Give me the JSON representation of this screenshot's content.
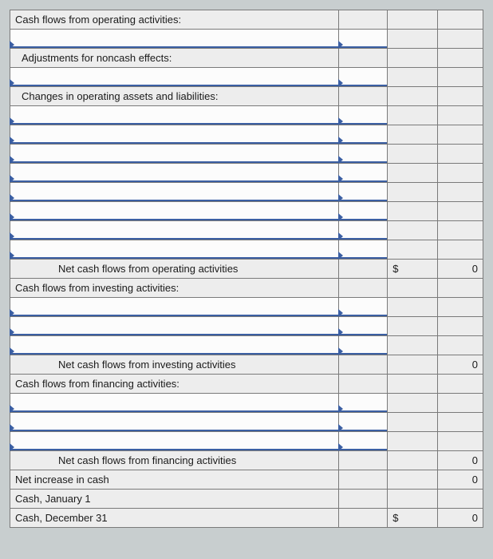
{
  "headers": {
    "operating": "Cash flows from operating activities:",
    "adjustments": "Adjustments for noncash effects:",
    "changes": "Changes in operating assets and liabilities:",
    "net_operating": "Net cash flows from operating activities",
    "investing": "Cash flows from investing activities:",
    "net_investing": "Net cash flows from investing activities",
    "financing": "Cash flows from financing activities:",
    "net_financing": "Net cash flows from financing activities",
    "net_increase": "Net increase in cash",
    "cash_jan1": "Cash, January 1",
    "cash_dec31": "Cash, December 31"
  },
  "values": {
    "dollar": "$",
    "zero": "0"
  },
  "style": {
    "background": "#c8cecf",
    "table_bg": "#ededed",
    "input_bg": "#fcfcfc",
    "border_color": "#7a7a7a",
    "accent_line": "#3b5fa3",
    "font_size": 13
  }
}
